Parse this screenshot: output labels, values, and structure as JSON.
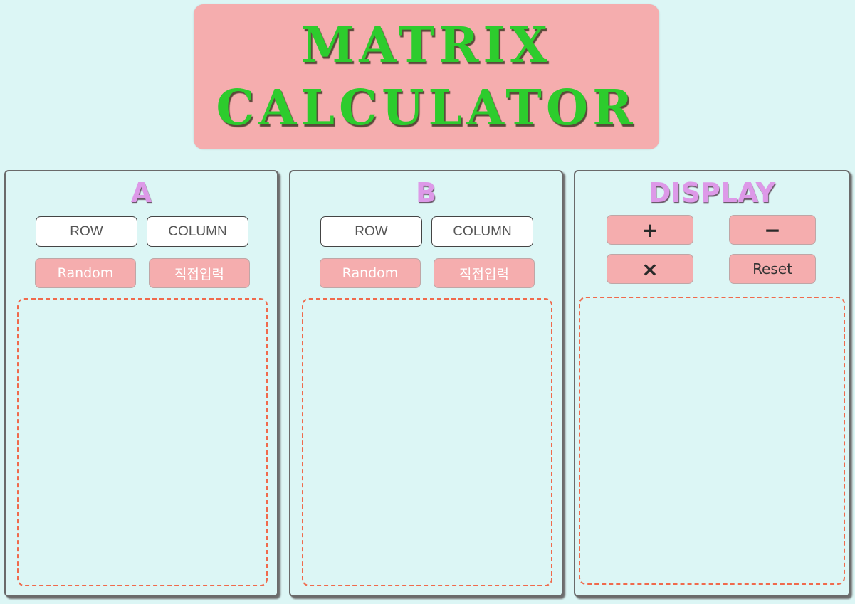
{
  "header": {
    "title_line1": "MATRIX",
    "title_line2": "CALCULATOR"
  },
  "panel_a": {
    "title": "A",
    "row_placeholder": "ROW",
    "column_placeholder": "COLUMN",
    "random_label": "Random",
    "direct_label": "직접입력"
  },
  "panel_b": {
    "title": "B",
    "row_placeholder": "ROW",
    "column_placeholder": "COLUMN",
    "random_label": "Random",
    "direct_label": "직접입력"
  },
  "display": {
    "title": "DISPLAY",
    "plus_label": "+",
    "minus_label": "−",
    "times_label": "×",
    "reset_label": "Reset"
  },
  "colors": {
    "background": "#dcf6f5",
    "accent_pink": "#f5adae",
    "title_green": "#2dcc2d",
    "panel_title_purple": "#dd99e8",
    "dashed_border": "#f06a4c"
  }
}
